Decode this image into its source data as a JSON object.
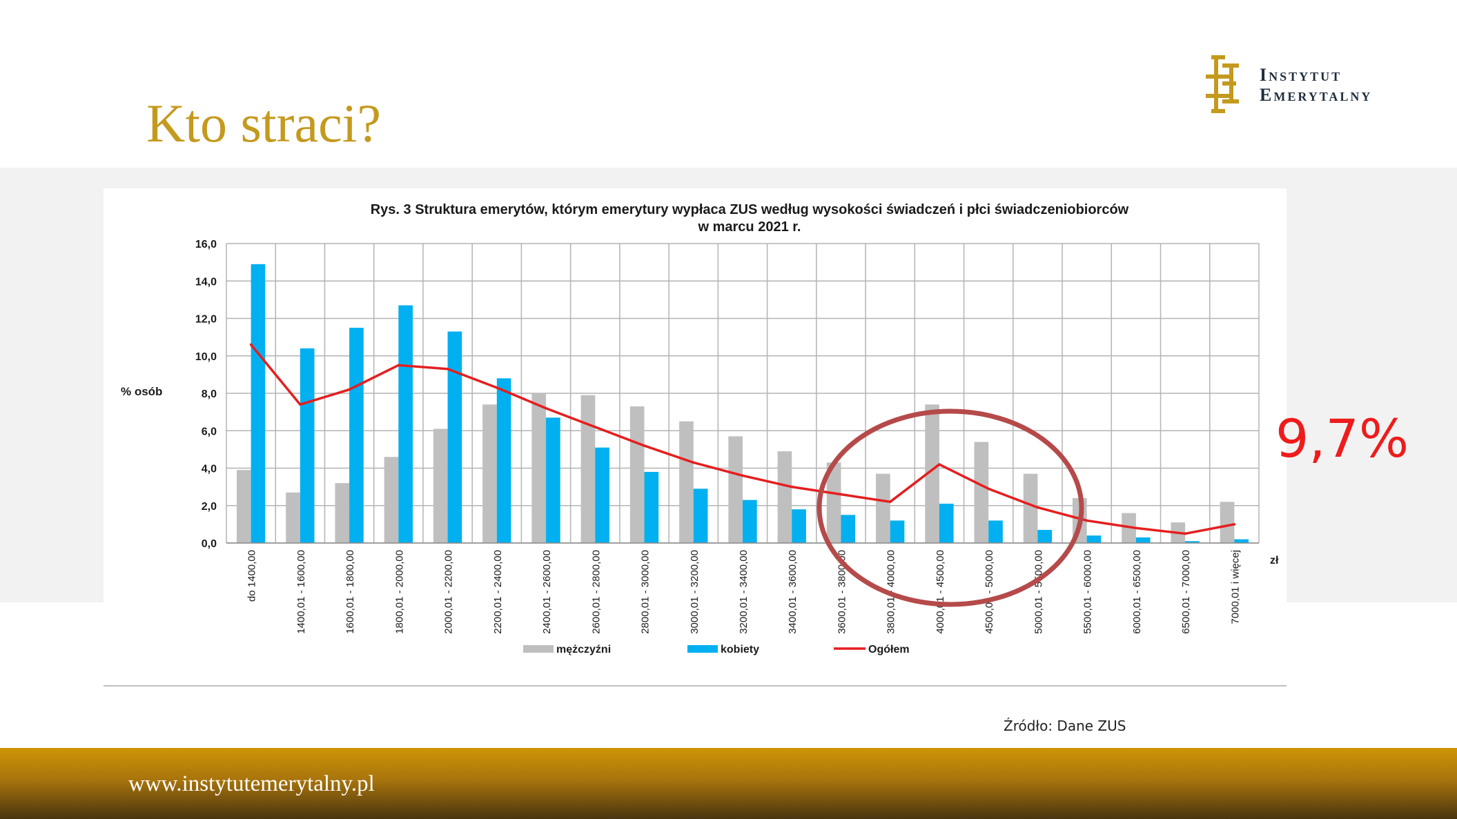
{
  "slide": {
    "title": "Kto straci?"
  },
  "logo": {
    "line1": "Instytut",
    "line2": "Emerytalny",
    "brand_color": "#c49a1e"
  },
  "highlight": {
    "value": "9,7%",
    "color": "#ee1c1c"
  },
  "source": "Źródło: Dane ZUS",
  "footer": {
    "url": "www.instytutemerytalny.pl"
  },
  "chart_data": {
    "type": "bar",
    "title": "Rys. 3 Struktura emerytów, którym emerytury wypłaca ZUS według wysokości świadczeń i płci świadczeniobiorców",
    "subtitle": "w marcu 2021 r.",
    "ylabel": "% osób",
    "xunit": "zł",
    "ylim": [
      0,
      16
    ],
    "yticks": [
      "0,0",
      "2,0",
      "4,0",
      "6,0",
      "8,0",
      "10,0",
      "12,0",
      "14,0",
      "16,0"
    ],
    "grid": true,
    "legend_position": "bottom",
    "categories": [
      "do 1400,00",
      "1400,01 - 1600,00",
      "1600,01 - 1800,00",
      "1800,01 - 2000,00",
      "2000,01 - 2200,00",
      "2200,01 - 2400,00",
      "2400,01 - 2600,00",
      "2600,01 - 2800,00",
      "2800,01 - 3000,00",
      "3000,01 - 3200,00",
      "3200,01 - 3400,00",
      "3400,01 - 3600,00",
      "3600,01 - 3800,00",
      "3800,01 - 4000,00",
      "4000,01 - 4500,00",
      "4500,01 - 5000,00",
      "5000,01 - 5500,00",
      "5500,01 - 6000,00",
      "6000,01 - 6500,00",
      "6500,01 - 7000,00",
      "7000,01 i więcej"
    ],
    "series": [
      {
        "name": "mężczyźni",
        "kind": "bar",
        "color": "#bfbfbf",
        "values": [
          3.9,
          2.7,
          3.2,
          4.6,
          6.1,
          7.4,
          8.0,
          7.9,
          7.3,
          6.5,
          5.7,
          4.9,
          4.3,
          3.7,
          7.4,
          5.4,
          3.7,
          2.4,
          1.6,
          1.1,
          2.2
        ]
      },
      {
        "name": "kobiety",
        "kind": "bar",
        "color": "#00b0f0",
        "values": [
          14.9,
          10.4,
          11.5,
          12.7,
          11.3,
          8.8,
          6.7,
          5.1,
          3.8,
          2.9,
          2.3,
          1.8,
          1.5,
          1.2,
          2.1,
          1.2,
          0.7,
          0.4,
          0.3,
          0.1,
          0.2
        ]
      },
      {
        "name": "Ogółem",
        "kind": "line",
        "color": "#e51e1e",
        "values": [
          10.6,
          7.4,
          8.2,
          9.5,
          9.3,
          8.3,
          7.2,
          6.2,
          5.2,
          4.3,
          3.6,
          3.0,
          2.6,
          2.2,
          4.2,
          2.9,
          1.9,
          1.2,
          0.8,
          0.5,
          1.0
        ]
      }
    ],
    "annotation": {
      "type": "ellipse",
      "color": "#b54a4a",
      "marks": "highest income brackets"
    }
  }
}
